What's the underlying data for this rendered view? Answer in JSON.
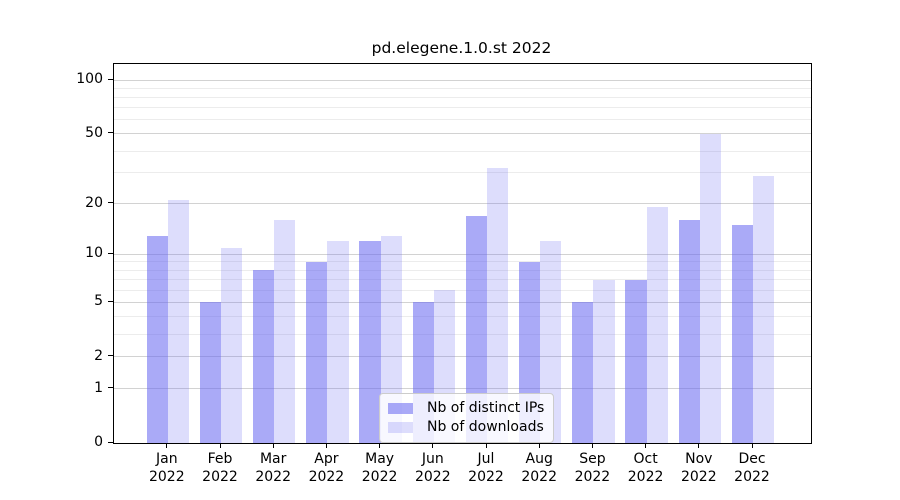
{
  "title": "pd.elegene.1.0.st 2022",
  "chart_data": {
    "type": "bar",
    "categories": [
      "Jan 2022",
      "Feb 2022",
      "Mar 2022",
      "Apr 2022",
      "May 2022",
      "Jun 2022",
      "Jul 2022",
      "Aug 2022",
      "Sep 2022",
      "Oct 2022",
      "Nov 2022",
      "Dec 2022"
    ],
    "series": [
      {
        "name": "Nb of distinct IPs",
        "color": "#6464f08c",
        "values": [
          13,
          5,
          8,
          9,
          12,
          5,
          17,
          9,
          5,
          7,
          16,
          15
        ]
      },
      {
        "name": "Nb of downloads",
        "color": "#6464f038",
        "values": [
          21,
          11,
          16,
          12,
          13,
          6,
          32,
          12,
          7,
          19,
          50,
          29
        ]
      }
    ],
    "yscale": "log1p",
    "ylim": [
      0,
      123
    ],
    "yticks": [
      0,
      1,
      2,
      5,
      10,
      20,
      50,
      100
    ],
    "yticks_minor": [
      3,
      4,
      6,
      7,
      8,
      9,
      30,
      40,
      60,
      70,
      80,
      90
    ],
    "grid": "on",
    "legend_position": "lower center",
    "colors": {
      "bar_base": "#6464f0",
      "grid_major": "#d2d2d2",
      "grid_minor": "#ececec",
      "spine": "#000000",
      "legend_border": "#cccccc"
    }
  }
}
